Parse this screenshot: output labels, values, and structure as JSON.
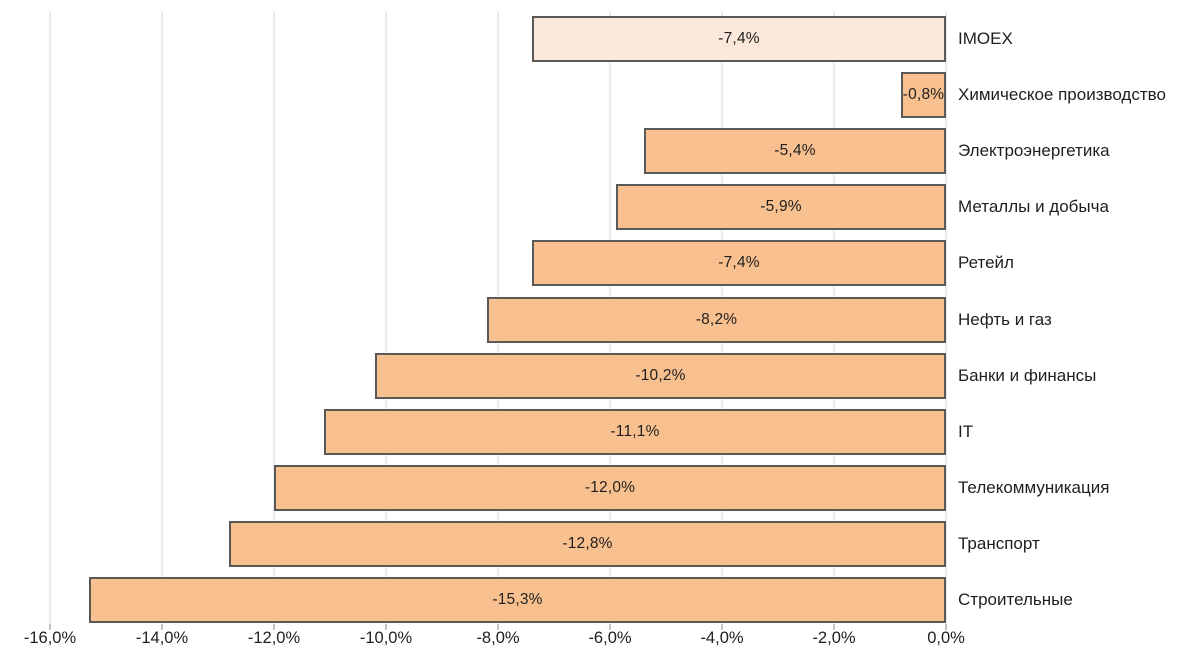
{
  "chart_data": {
    "type": "bar",
    "orientation": "horizontal",
    "title": "",
    "xlabel": "",
    "ylabel": "",
    "categories": [
      "IMOEX",
      "Химическое производство",
      "Электроэнергетика",
      "Металлы и добыча",
      "Ретейл",
      "Нефть и газ",
      "Банки и финансы",
      "IT",
      "Телекоммуникация",
      "Транспорт",
      "Строительные"
    ],
    "values": [
      -7.4,
      -0.8,
      -5.4,
      -5.9,
      -7.4,
      -8.2,
      -10.2,
      -11.1,
      -12.0,
      -12.8,
      -15.3
    ],
    "value_labels": [
      "-7,4%",
      "-0,8%",
      "-5,4%",
      "-5,9%",
      "-7,4%",
      "-8,2%",
      "-10,2%",
      "-11,1%",
      "-12,0%",
      "-12,8%",
      "-15,3%"
    ],
    "xlim": [
      -16,
      0
    ],
    "x_ticks": [
      -16,
      -14,
      -12,
      -10,
      -8,
      -6,
      -4,
      -2,
      0
    ],
    "x_tick_labels": [
      "-16,0%",
      "-14,0%",
      "-12,0%",
      "-10,0%",
      "-8,0%",
      "-6,0%",
      "-4,0%",
      "-2,0%",
      "0,0%"
    ],
    "grid": true,
    "legend": null,
    "colors": {
      "bar_default": "#f8c08e",
      "bar_highlight": "#fbe8da",
      "bar_border": "#595959",
      "gridline": "#ebebeb",
      "tick": "#c2c2c2",
      "text": "#1f1f1f"
    },
    "highlight_index": 0
  }
}
